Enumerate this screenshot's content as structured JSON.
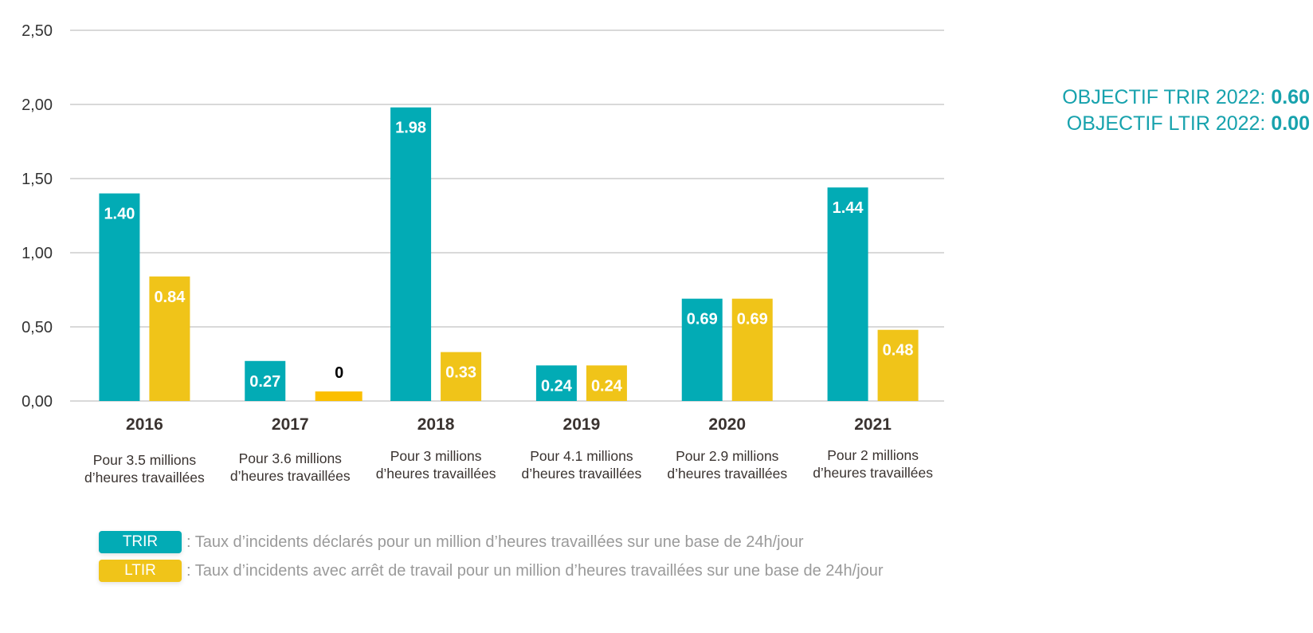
{
  "chart_data": {
    "type": "bar",
    "title": "",
    "xlabel": "",
    "ylabel": "",
    "ylim": [
      0,
      2.5
    ],
    "yticks": [
      "0,00",
      "0,50",
      "1,00",
      "1,50",
      "2,00",
      "2,50"
    ],
    "ytick_values": [
      0,
      0.5,
      1.0,
      1.5,
      2.0,
      2.5
    ],
    "grid": true,
    "categories": [
      "2016",
      "2017",
      "2018",
      "2019",
      "2020",
      "2021"
    ],
    "category_sublabels": [
      [
        "Pour 3.5 millions",
        "d’heures travaillées"
      ],
      [
        "Pour 3.6 millions",
        "d’heures travaillées"
      ],
      [
        "Pour 3 millions",
        "d’heures travaillées"
      ],
      [
        "Pour 4.1 millions",
        "d’heures travaillées"
      ],
      [
        "Pour 2.9 millions",
        "d’heures travaillées"
      ],
      [
        "Pour 2 millions",
        "d’heures travaillées"
      ]
    ],
    "series": [
      {
        "name": "TRIR",
        "color": "#02abb5",
        "values": [
          1.4,
          0.27,
          1.98,
          0.24,
          0.69,
          1.44
        ],
        "labels": [
          "1.40",
          "0.27",
          "1.98",
          "0.24",
          "0.69",
          "1.44"
        ]
      },
      {
        "name": "LTIR",
        "color": "#f0c419",
        "values": [
          0.84,
          0,
          0.33,
          0.24,
          0.69,
          0.48
        ],
        "labels": [
          "0.84",
          "0",
          "0.33",
          "0.24",
          "0.69",
          "0.48"
        ]
      }
    ],
    "zero_marker_color": "#fbbf00",
    "legend_position": "bottom-left"
  },
  "objectives": [
    {
      "label": "OBJECTIF TRIR 2022: ",
      "value": "0.60"
    },
    {
      "label": "OBJECTIF LTIR 2022: ",
      "value": "0.00"
    }
  ],
  "legend": [
    {
      "key": "TRIR",
      "color": "#02abb5",
      "text": ": Taux d’incidents déclarés pour un million d’heures travaillées sur une base de 24h/jour"
    },
    {
      "key": "LTIR",
      "color": "#f0c419",
      "text": ": Taux d’incidents avec arrêt de travail pour un million d’heures travaillées sur une base de 24h/jour"
    }
  ]
}
